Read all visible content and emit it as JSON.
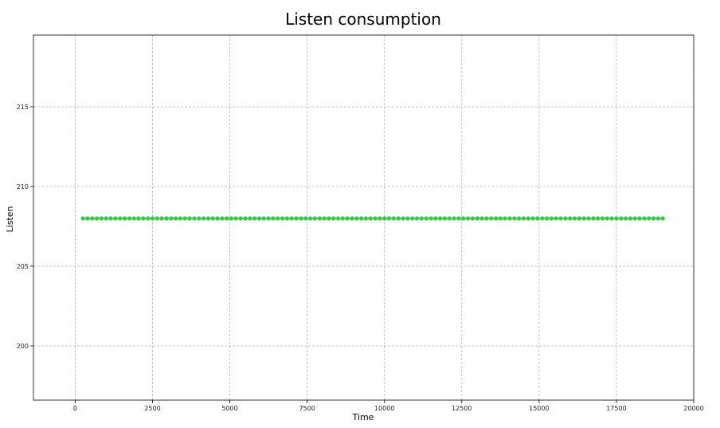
{
  "chart_data": {
    "type": "line",
    "title": "Listen consumption",
    "xlabel": "Time",
    "ylabel": "Listen",
    "xlim": [
      -1350,
      20000
    ],
    "ylim": [
      196.6,
      219.5
    ],
    "grid": true,
    "x_ticks": [
      0,
      2500,
      5000,
      7500,
      10000,
      12500,
      15000,
      17500,
      20000
    ],
    "x_tick_labels": [
      "0",
      "2500",
      "5000",
      "7500",
      "10000",
      "12500",
      "15000",
      "17500",
      "20000"
    ],
    "y_ticks": [
      200,
      205,
      210,
      215
    ],
    "y_tick_labels": [
      "200",
      "205",
      "210",
      "215"
    ],
    "series": [
      {
        "name": "Listen",
        "color": "#2ecc40",
        "marker": "circle",
        "x_start": 250,
        "x_end": 19100,
        "x_step": 150,
        "value": 208
      }
    ]
  }
}
